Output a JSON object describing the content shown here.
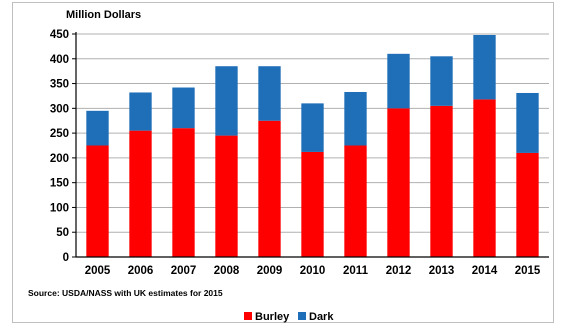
{
  "chart_data": {
    "type": "bar",
    "stacked": true,
    "categories": [
      "2005",
      "2006",
      "2007",
      "2008",
      "2009",
      "2010",
      "2011",
      "2012",
      "2013",
      "2014",
      "2015"
    ],
    "series": [
      {
        "name": "Burley",
        "color": "#ff0000",
        "values": [
          225,
          255,
          260,
          245,
          275,
          212,
          225,
          300,
          305,
          318,
          210
        ]
      },
      {
        "name": "Dark",
        "color": "#1f6fb8",
        "values": [
          70,
          77,
          82,
          140,
          110,
          98,
          108,
          110,
          100,
          130,
          121
        ]
      }
    ],
    "ylabel": "Million Dollars",
    "ylim": [
      0,
      450
    ],
    "yticks": [
      "0",
      "50",
      "100",
      "150",
      "200",
      "250",
      "300",
      "350",
      "400",
      "450"
    ],
    "grid": true,
    "legend_position": "bottom-center",
    "source_note": "Source:  USDA/NASS with UK estimates for 2015"
  }
}
